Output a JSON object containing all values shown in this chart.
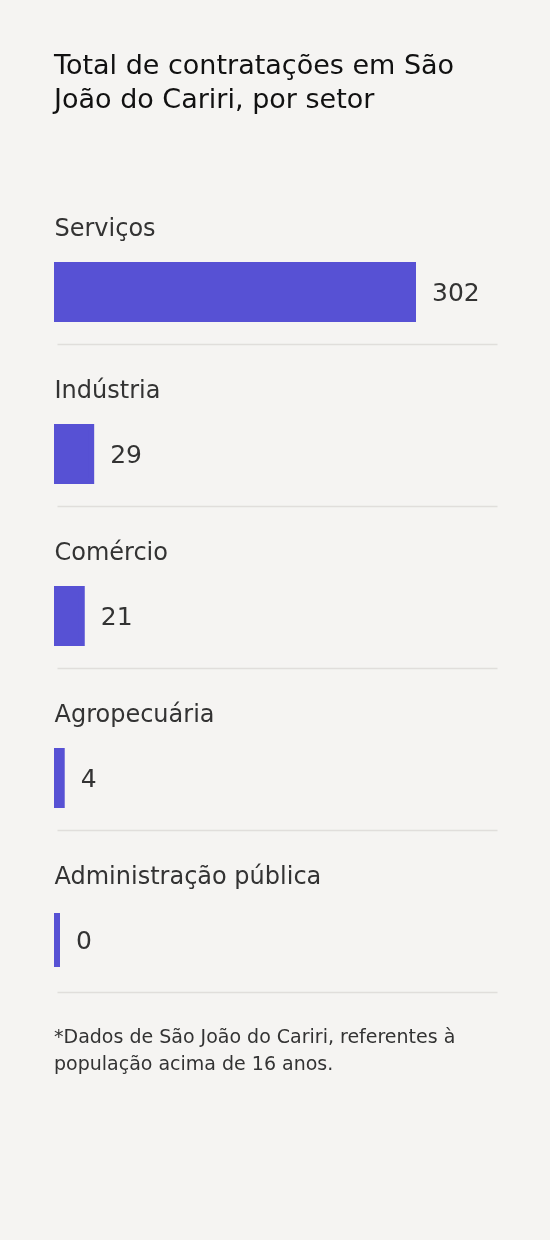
{
  "chart_data": {
    "type": "bar",
    "orientation": "horizontal",
    "title": "Total de contratações em São João do Cariri, por setor",
    "categories": [
      "Serviços",
      "Indústria",
      "Comércio",
      "Agropecuária",
      "Administração pública"
    ],
    "values": [
      302,
      29,
      21,
      4,
      0
    ],
    "color": "#5751d4",
    "data_labels": true,
    "grid": "y",
    "tick_labels": "y",
    "annotations": [
      "*Dados de São João do Cariri, referentes à população acima de 16 anos."
    ]
  }
}
